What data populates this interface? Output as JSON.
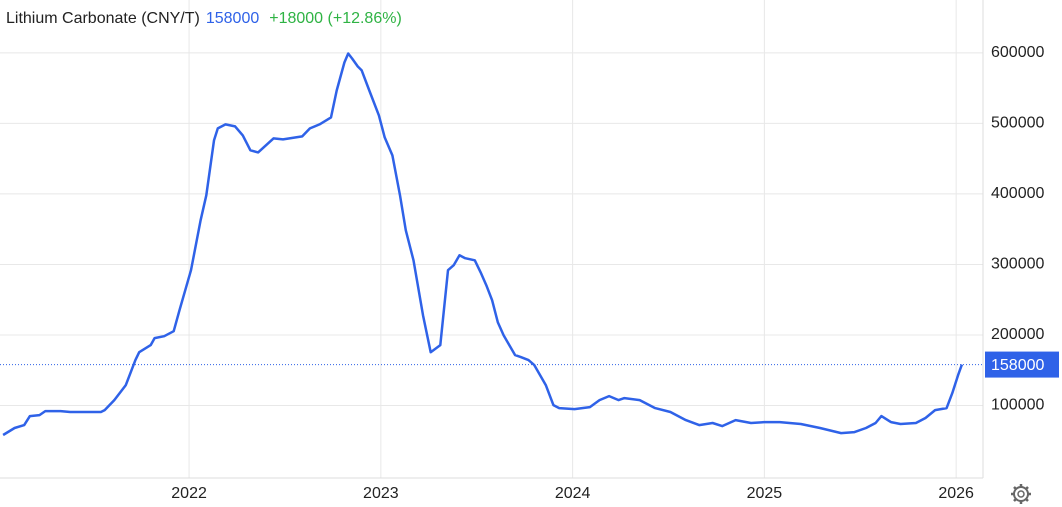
{
  "chart_data": {
    "type": "line",
    "title": "Lithium Carbonate (CNY/T)",
    "change_label": "+18000 (+12.86%)",
    "color": "#2f62e8",
    "change_color": "#2fb344",
    "x": [
      2021.03,
      2021.09,
      2021.14,
      2021.17,
      2021.22,
      2021.25,
      2021.33,
      2021.38,
      2021.54,
      2021.56,
      2021.61,
      2021.67,
      2021.72,
      2021.74,
      2021.8,
      2021.82,
      2021.87,
      2021.92,
      2021.95,
      2022.01,
      2022.06,
      2022.09,
      2022.13,
      2022.15,
      2022.19,
      2022.24,
      2022.28,
      2022.32,
      2022.36,
      2022.4,
      2022.44,
      2022.49,
      2022.59,
      2022.63,
      2022.68,
      2022.74,
      2022.77,
      2022.81,
      2022.83,
      2022.85,
      2022.88,
      2022.9,
      2022.94,
      2022.99,
      2023.02,
      2023.06,
      2023.1,
      2023.13,
      2023.17,
      2023.22,
      2023.26,
      2023.31,
      2023.35,
      2023.38,
      2023.41,
      2023.44,
      2023.49,
      2023.52,
      2023.55,
      2023.58,
      2023.61,
      2023.64,
      2023.67,
      2023.7,
      2023.73,
      2023.77,
      2023.8,
      2023.86,
      2023.9,
      2023.93,
      2024.01,
      2024.09,
      2024.14,
      2024.19,
      2024.24,
      2024.27,
      2024.35,
      2024.43,
      2024.51,
      2024.59,
      2024.66,
      2024.73,
      2024.78,
      2024.85,
      2024.93,
      2025.0,
      2025.08,
      2025.19,
      2025.29,
      2025.4,
      2025.47,
      2025.53,
      2025.58,
      2025.61,
      2025.66,
      2025.71,
      2025.79,
      2025.84,
      2025.89,
      2025.95,
      2025.98,
      2026.01,
      2026.03
    ],
    "values": [
      58100,
      68000,
      72200,
      85000,
      86400,
      92000,
      92000,
      90700,
      90700,
      93500,
      107600,
      128900,
      164300,
      175600,
      185600,
      195500,
      198300,
      205400,
      235100,
      291800,
      362600,
      398000,
      475900,
      492900,
      498600,
      495800,
      483000,
      461800,
      458900,
      468800,
      478800,
      477300,
      481600,
      492900,
      498600,
      508500,
      546700,
      586400,
      599200,
      592100,
      580700,
      575100,
      546700,
      511300,
      480200,
      454700,
      398000,
      348400,
      305900,
      228000,
      175600,
      185600,
      291800,
      298900,
      313000,
      308800,
      305900,
      288900,
      270500,
      249300,
      218100,
      199700,
      185600,
      171400,
      168600,
      164300,
      157200,
      128900,
      100600,
      96300,
      94900,
      97700,
      107600,
      113300,
      107600,
      110500,
      107600,
      96300,
      90700,
      79300,
      72200,
      75100,
      70800,
      79300,
      75100,
      76500,
      76500,
      73700,
      68000,
      60900,
      62300,
      68000,
      75100,
      85000,
      76500,
      73700,
      75100,
      82200,
      93500,
      96300,
      117600,
      143100,
      158000
    ],
    "xlim": [
      2021.014,
      2026.14
    ],
    "xticks": [
      2022,
      2023,
      2024,
      2025,
      2026
    ],
    "ylim": [
      0,
      675000
    ],
    "yticks": [
      100000,
      200000,
      300000,
      400000,
      500000,
      600000
    ],
    "grid": true
  }
}
